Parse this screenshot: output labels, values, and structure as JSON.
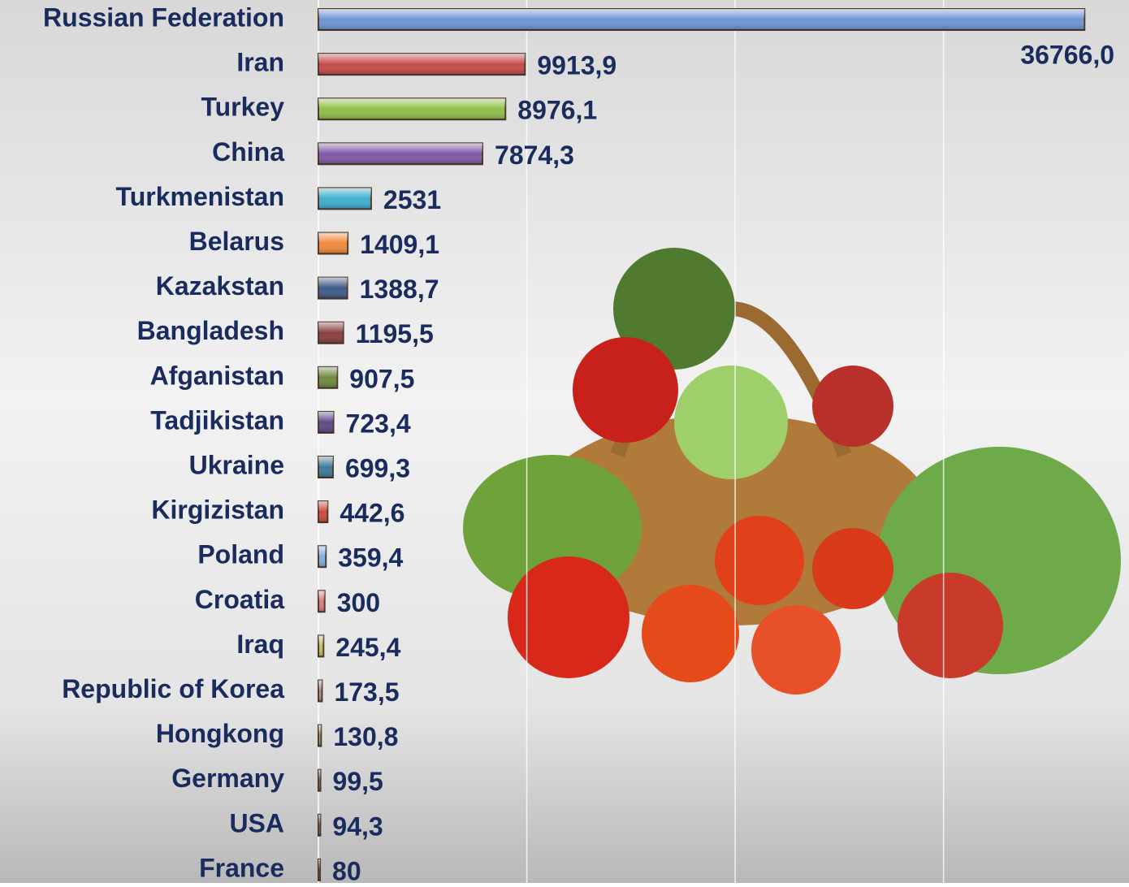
{
  "chart_data": {
    "type": "bar",
    "orientation": "horizontal",
    "categories": [
      "Russian Federation",
      "Iran",
      "Turkey",
      "China",
      "Turkmenistan",
      "Belarus",
      "Kazakstan",
      "Bangladesh",
      "Afganistan",
      "Tadjikistan",
      "Ukraine",
      "Kirgizistan",
      "Poland",
      "Croatia",
      "Iraq",
      "Republic of Korea",
      "Hongkong",
      "Germany",
      "USA",
      "France"
    ],
    "values": [
      36766.0,
      9913.9,
      8976.1,
      7874.3,
      2531,
      1409.1,
      1388.7,
      1195.5,
      907.5,
      723.4,
      699.3,
      442.6,
      359.4,
      300,
      245.4,
      173.5,
      130.8,
      99.5,
      94.3,
      80
    ],
    "value_labels": [
      "36766,0",
      "9913,9",
      "8976,1",
      "7874,3",
      "2531",
      "1409,1",
      "1388,7",
      "1195,5",
      "907,5",
      "723,4",
      "699,3",
      "442,6",
      "359,4",
      "300",
      "245,4",
      "173,5",
      "130,8",
      "99,5",
      "94,3",
      "80"
    ],
    "colors": [
      "#6f95d4",
      "#c84a4a",
      "#8fbf4a",
      "#7f5aa8",
      "#3fb0cf",
      "#f08a3c",
      "#3f5a8a",
      "#8a3f3f",
      "#6f8a3f",
      "#5f4a8a",
      "#3f7a9a",
      "#d04a3a",
      "#7fb0e0",
      "#e07a7a",
      "#c0c060",
      "#b09090",
      "#a0a080",
      "#9090a0",
      "#909090",
      "#a0a0a0"
    ],
    "xlim": [
      0,
      38900
    ],
    "xticks": [
      10000,
      20000,
      30000
    ],
    "grid": true
  }
}
